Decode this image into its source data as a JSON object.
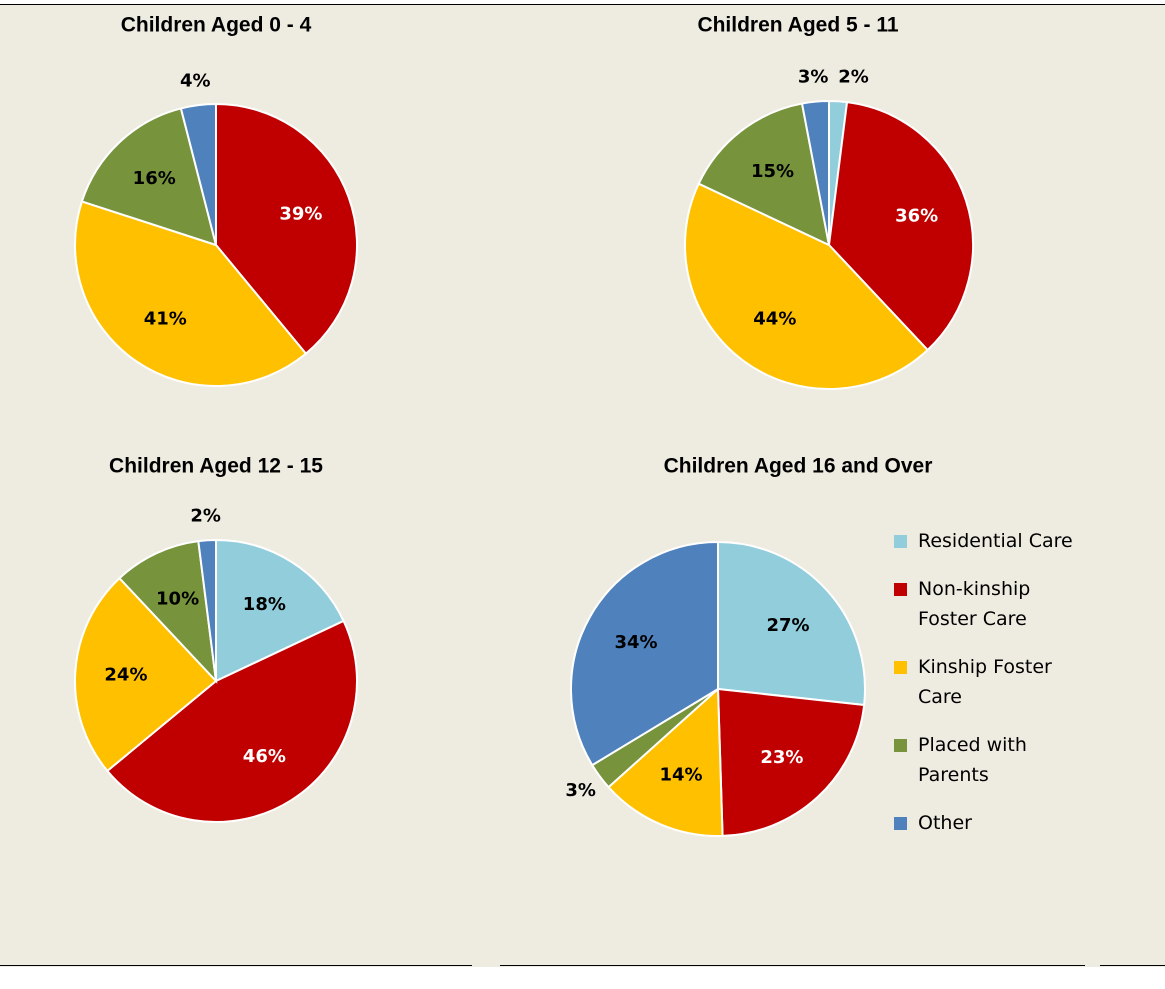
{
  "chart_data": [
    {
      "type": "pie",
      "title": "Children Aged 0 - 4",
      "values": [
        39,
        41,
        16,
        4
      ],
      "value_labels": [
        "39%",
        "41%",
        "16%",
        "4%"
      ],
      "colors": [
        "#c00000",
        "#ffc000",
        "#77933c",
        "#4f81bd"
      ]
    },
    {
      "type": "pie",
      "title": "Children Aged 5 - 11",
      "values": [
        2,
        36,
        44,
        15,
        3
      ],
      "value_labels": [
        "2%",
        "36%",
        "44%",
        "15%",
        "3%"
      ],
      "colors": [
        "#92cddc",
        "#c00000",
        "#ffc000",
        "#77933c",
        "#4f81bd"
      ]
    },
    {
      "type": "pie",
      "title": "Children Aged 12 - 15",
      "values": [
        18,
        46,
        24,
        10,
        2
      ],
      "value_labels": [
        "18%",
        "46%",
        "24%",
        "10%",
        "2%"
      ],
      "colors": [
        "#92cddc",
        "#c00000",
        "#ffc000",
        "#77933c",
        "#4f81bd"
      ]
    },
    {
      "type": "pie",
      "title": "Children Aged 16 and Over",
      "categories": [
        "Residential Care",
        "Non-kinship Foster Care",
        "Kinship Foster Care",
        "Placed with Parents",
        "Other"
      ],
      "values": [
        27,
        23,
        14,
        3,
        34
      ],
      "value_labels": [
        "27%",
        "23%",
        "14%",
        "3%",
        "34%"
      ],
      "colors": [
        "#92cddc",
        "#c00000",
        "#ffc000",
        "#77933c",
        "#4f81bd"
      ],
      "legend": "right"
    }
  ]
}
